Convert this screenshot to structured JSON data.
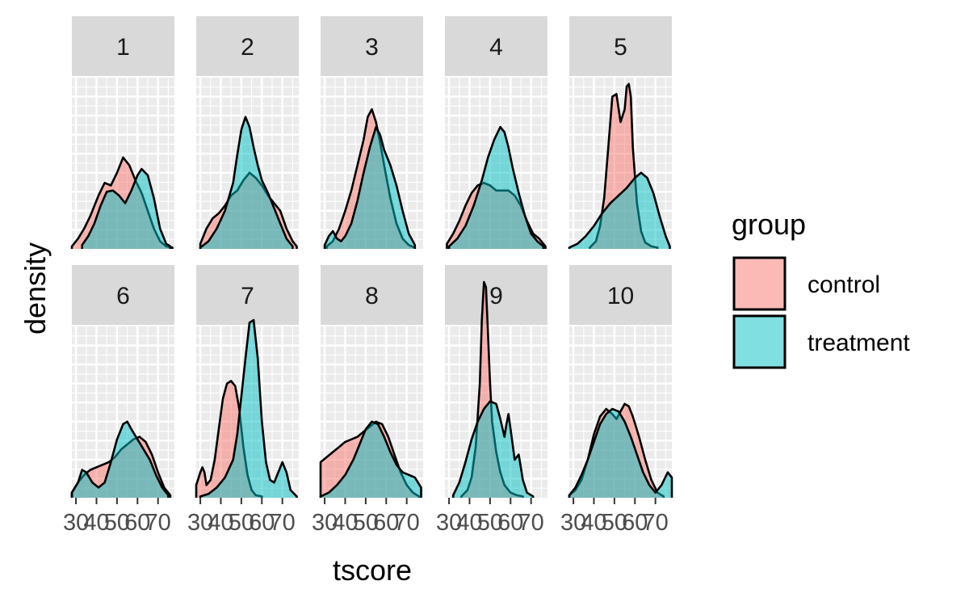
{
  "chart_data": {
    "type": "area",
    "xlabel": "tscore",
    "ylabel": "density",
    "legend": {
      "title": "group",
      "position": "right",
      "entries": [
        {
          "label": "control",
          "color": "#F8766D"
        },
        {
          "label": "treatment",
          "color": "#00BFC4"
        }
      ]
    },
    "x_ticks": [
      30,
      40,
      50,
      60,
      70
    ],
    "x_tick_labels": [
      "30",
      "40",
      "50",
      "60",
      "70"
    ],
    "xlim": [
      28,
      78
    ],
    "ylim": [
      0,
      0.135
    ],
    "grid": true,
    "facets": [
      {
        "label": "1",
        "control": {
          "x": [
            28,
            31,
            34,
            37,
            41,
            44,
            47,
            50,
            53,
            56,
            59,
            62,
            65,
            68,
            71,
            74,
            77
          ],
          "y": [
            0.002,
            0.008,
            0.016,
            0.026,
            0.042,
            0.052,
            0.05,
            0.06,
            0.072,
            0.066,
            0.054,
            0.044,
            0.03,
            0.016,
            0.006,
            0.002,
            0.001
          ]
        },
        "treatment": {
          "x": [
            33,
            36,
            39,
            42,
            45,
            48,
            51,
            54,
            57,
            60,
            62,
            65,
            68,
            71,
            74,
            76
          ],
          "y": [
            0.003,
            0.01,
            0.02,
            0.034,
            0.045,
            0.046,
            0.042,
            0.036,
            0.046,
            0.058,
            0.063,
            0.058,
            0.04,
            0.016,
            0.004,
            0.002
          ]
        }
      },
      {
        "label": "2",
        "control": {
          "x": [
            30,
            33,
            36,
            39,
            42,
            45,
            48,
            51,
            54,
            57,
            60,
            63,
            66,
            69,
            72,
            75,
            77
          ],
          "y": [
            0.004,
            0.016,
            0.024,
            0.028,
            0.034,
            0.042,
            0.046,
            0.054,
            0.06,
            0.056,
            0.05,
            0.042,
            0.036,
            0.03,
            0.016,
            0.006,
            0.002
          ]
        },
        "treatment": {
          "x": [
            30,
            34,
            38,
            42,
            46,
            48,
            50,
            52,
            54,
            56,
            58,
            60,
            63,
            66,
            69,
            72,
            75
          ],
          "y": [
            0.001,
            0.006,
            0.016,
            0.03,
            0.052,
            0.074,
            0.094,
            0.104,
            0.096,
            0.08,
            0.066,
            0.054,
            0.044,
            0.032,
            0.02,
            0.008,
            0.002
          ]
        }
      },
      {
        "label": "3",
        "control": {
          "x": [
            31,
            34,
            37,
            40,
            43,
            46,
            49,
            51,
            53,
            55,
            57,
            59,
            62,
            65,
            68,
            71,
            74
          ],
          "y": [
            0.002,
            0.006,
            0.016,
            0.03,
            0.046,
            0.066,
            0.086,
            0.104,
            0.11,
            0.1,
            0.084,
            0.066,
            0.04,
            0.02,
            0.008,
            0.003,
            0.001
          ]
        },
        "treatment": {
          "x": [
            30,
            32,
            34,
            36,
            38,
            40,
            43,
            46,
            49,
            52,
            55,
            57,
            59,
            62,
            65,
            68,
            71,
            74
          ],
          "y": [
            0.003,
            0.01,
            0.014,
            0.008,
            0.006,
            0.01,
            0.02,
            0.038,
            0.06,
            0.08,
            0.096,
            0.09,
            0.078,
            0.066,
            0.05,
            0.03,
            0.012,
            0.003
          ]
        }
      },
      {
        "label": "4",
        "control": {
          "x": [
            29,
            32,
            35,
            38,
            41,
            44,
            47,
            50,
            53,
            56,
            59,
            62,
            65,
            68,
            71,
            74,
            77
          ],
          "y": [
            0.004,
            0.012,
            0.022,
            0.034,
            0.044,
            0.05,
            0.052,
            0.05,
            0.046,
            0.046,
            0.046,
            0.042,
            0.034,
            0.022,
            0.012,
            0.008,
            0.002
          ]
        },
        "treatment": {
          "x": [
            30,
            34,
            38,
            42,
            46,
            49,
            52,
            55,
            57,
            59,
            61,
            64,
            67,
            70,
            73,
            76
          ],
          "y": [
            0.002,
            0.008,
            0.018,
            0.034,
            0.054,
            0.072,
            0.086,
            0.096,
            0.092,
            0.08,
            0.064,
            0.044,
            0.026,
            0.012,
            0.006,
            0.002
          ]
        }
      },
      {
        "label": "5",
        "control": {
          "x": [
            38,
            41,
            43,
            45,
            47,
            49,
            51,
            53,
            55,
            56,
            57,
            58,
            59,
            61,
            63,
            65,
            68,
            71
          ],
          "y": [
            0.001,
            0.006,
            0.018,
            0.04,
            0.08,
            0.12,
            0.122,
            0.1,
            0.11,
            0.128,
            0.13,
            0.12,
            0.08,
            0.036,
            0.014,
            0.005,
            0.002,
            0.001
          ]
        },
        "treatment": {
          "x": [
            28,
            32,
            36,
            40,
            44,
            48,
            52,
            56,
            60,
            63,
            66,
            69,
            72,
            75,
            77
          ],
          "y": [
            0.001,
            0.004,
            0.01,
            0.018,
            0.028,
            0.036,
            0.042,
            0.048,
            0.056,
            0.06,
            0.056,
            0.044,
            0.026,
            0.01,
            0.002
          ]
        }
      },
      {
        "label": "6",
        "control": {
          "x": [
            28,
            31,
            34,
            37,
            40,
            43,
            46,
            49,
            52,
            55,
            58,
            61,
            64,
            67,
            70,
            73,
            76
          ],
          "y": [
            0.004,
            0.012,
            0.018,
            0.022,
            0.024,
            0.026,
            0.028,
            0.032,
            0.038,
            0.042,
            0.046,
            0.048,
            0.044,
            0.034,
            0.02,
            0.008,
            0.002
          ]
        },
        "treatment": {
          "x": [
            28,
            31,
            33,
            35,
            38,
            41,
            44,
            47,
            50,
            53,
            55,
            57,
            60,
            63,
            66,
            69,
            72,
            75
          ],
          "y": [
            0.004,
            0.012,
            0.022,
            0.02,
            0.012,
            0.008,
            0.012,
            0.028,
            0.046,
            0.058,
            0.06,
            0.054,
            0.046,
            0.038,
            0.03,
            0.018,
            0.008,
            0.002
          ]
        }
      },
      {
        "label": "7",
        "control": {
          "x": [
            28,
            30,
            31,
            32,
            33,
            35,
            37,
            39,
            41,
            43,
            45,
            47,
            49,
            51,
            53,
            55,
            57,
            60
          ],
          "y": [
            0.01,
            0.02,
            0.024,
            0.02,
            0.01,
            0.014,
            0.03,
            0.054,
            0.078,
            0.09,
            0.092,
            0.088,
            0.07,
            0.04,
            0.018,
            0.006,
            0.002,
            0.001
          ]
        },
        "treatment": {
          "x": [
            30,
            34,
            38,
            42,
            46,
            48,
            50,
            52,
            54,
            56,
            58,
            60,
            62,
            64,
            66,
            68,
            70,
            72,
            74,
            77
          ],
          "y": [
            0.001,
            0.003,
            0.008,
            0.016,
            0.03,
            0.05,
            0.08,
            0.11,
            0.138,
            0.14,
            0.11,
            0.06,
            0.028,
            0.014,
            0.012,
            0.02,
            0.028,
            0.02,
            0.006,
            0.001
          ]
        }
      },
      {
        "label": "8",
        "control": {
          "x": [
            28,
            31,
            34,
            37,
            40,
            43,
            46,
            49,
            52,
            55,
            58,
            61,
            64,
            67,
            70,
            73,
            76
          ],
          "y": [
            0.028,
            0.032,
            0.036,
            0.04,
            0.044,
            0.046,
            0.048,
            0.052,
            0.056,
            0.06,
            0.058,
            0.048,
            0.034,
            0.02,
            0.01,
            0.004,
            0.001
          ]
        },
        "treatment": {
          "x": [
            28,
            32,
            36,
            40,
            44,
            47,
            50,
            53,
            56,
            59,
            62,
            65,
            68,
            71,
            74,
            77
          ],
          "y": [
            0.001,
            0.004,
            0.01,
            0.018,
            0.03,
            0.042,
            0.054,
            0.06,
            0.058,
            0.048,
            0.036,
            0.026,
            0.02,
            0.018,
            0.016,
            0.008
          ]
        }
      },
      {
        "label": "9",
        "control": {
          "x": [
            36,
            39,
            41,
            43,
            45,
            46,
            47,
            48,
            49,
            50,
            51,
            53,
            55,
            57,
            60,
            63,
            66
          ],
          "y": [
            0.001,
            0.006,
            0.016,
            0.04,
            0.09,
            0.14,
            0.17,
            0.166,
            0.13,
            0.09,
            0.06,
            0.036,
            0.02,
            0.01,
            0.004,
            0.002,
            0.001
          ]
        },
        "treatment": {
          "x": [
            32,
            35,
            38,
            41,
            44,
            47,
            50,
            53,
            55,
            57,
            58,
            59,
            60,
            62,
            64,
            66,
            68,
            71
          ],
          "y": [
            0.002,
            0.012,
            0.028,
            0.046,
            0.06,
            0.07,
            0.076,
            0.074,
            0.062,
            0.048,
            0.058,
            0.066,
            0.054,
            0.03,
            0.034,
            0.014,
            0.004,
            0.001
          ]
        }
      },
      {
        "label": "10",
        "control": {
          "x": [
            28,
            31,
            34,
            37,
            40,
            43,
            46,
            49,
            51,
            53,
            55,
            57,
            59,
            62,
            65,
            68,
            71,
            74
          ],
          "y": [
            0.002,
            0.006,
            0.014,
            0.03,
            0.05,
            0.064,
            0.07,
            0.066,
            0.062,
            0.068,
            0.074,
            0.072,
            0.064,
            0.048,
            0.03,
            0.014,
            0.004,
            0.001
          ]
        },
        "treatment": {
          "x": [
            28,
            31,
            34,
            37,
            40,
            43,
            46,
            49,
            52,
            55,
            58,
            61,
            64,
            67,
            70,
            73,
            76,
            78
          ],
          "y": [
            0.002,
            0.008,
            0.018,
            0.03,
            0.044,
            0.058,
            0.066,
            0.07,
            0.068,
            0.06,
            0.048,
            0.034,
            0.02,
            0.01,
            0.004,
            0.01,
            0.02,
            0.016
          ]
        }
      }
    ]
  }
}
